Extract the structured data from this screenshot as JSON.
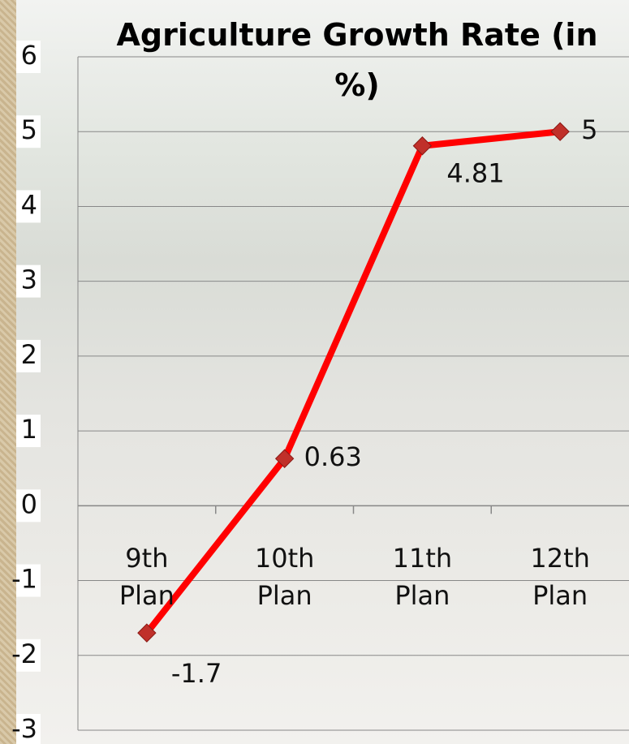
{
  "chart_data": {
    "type": "line",
    "title": "Agriculture Growth Rate (in %)",
    "categories": [
      "9th Plan",
      "10th Plan",
      "11th Plan",
      "12th Plan"
    ],
    "values": [
      -1.7,
      0.63,
      4.81,
      5
    ],
    "color": "#ff0000",
    "ylim": [
      -3,
      6
    ],
    "yticks": [
      -3,
      -2,
      -1,
      0,
      1,
      2,
      3,
      4,
      5,
      6
    ],
    "grid": true
  }
}
